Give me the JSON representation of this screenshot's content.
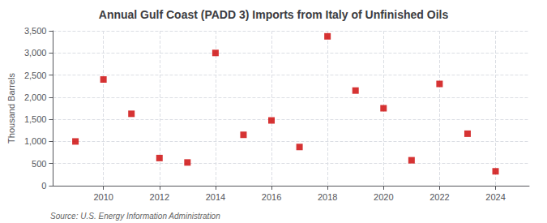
{
  "chart_data": {
    "type": "scatter",
    "title": "Annual Gulf Coast (PADD 3) Imports from Italy of Unfinished Oils",
    "ylabel": "Thousand Barrels",
    "annotation": "Source: U.S. Energy Information Administration",
    "x": [
      2009,
      2010,
      2011,
      2012,
      2013,
      2014,
      2015,
      2016,
      2017,
      2018,
      2019,
      2020,
      2021,
      2022,
      2023,
      2024
    ],
    "values": [
      1000,
      2400,
      1625,
      625,
      525,
      3000,
      1150,
      1475,
      875,
      3375,
      2150,
      1750,
      575,
      2300,
      1175,
      325
    ],
    "color": "#cc0000",
    "marker": "square",
    "xlim": [
      2008.2,
      2025.2
    ],
    "xticks": [
      2010,
      2012,
      2014,
      2016,
      2018,
      2020,
      2022,
      2024
    ],
    "ylim": [
      0,
      3500
    ],
    "yticks": [
      0,
      500,
      {
        "value": 1000,
        "label": "1,000"
      },
      {
        "value": 1500,
        "label": "1,500"
      },
      {
        "value": 2000,
        "label": "2,000"
      },
      {
        "value": 2500,
        "label": "2,500"
      },
      {
        "value": 3000,
        "label": "3,000"
      },
      {
        "value": 3500,
        "label": "3,500"
      }
    ],
    "grid": true
  }
}
